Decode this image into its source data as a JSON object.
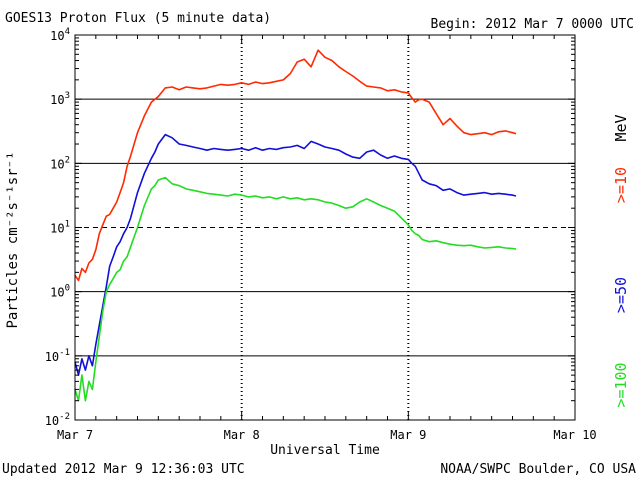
{
  "header": {
    "title": "GOES13 Proton Flux (5 minute data)",
    "begin": "Begin: 2012 Mar 7 0000 UTC"
  },
  "footer": {
    "updated": "Updated 2012 Mar  9 12:36:03 UTC",
    "credit": "NOAA/SWPC Boulder, CO USA"
  },
  "colors": {
    "p10": "#ff2a00",
    "p50": "#1010d8",
    "p100": "#22dd22",
    "grid": "#000000"
  },
  "chart_data": {
    "type": "line",
    "title": "GOES13 Proton Flux (5 minute data)",
    "xlabel": "Universal Time",
    "ylabel": "Particles cm⁻²s⁻¹sr⁻¹",
    "yscale": "log",
    "ylim": [
      0.01,
      10000
    ],
    "xlim": [
      0,
      72
    ],
    "x_unit": "hours since 2012 Mar 7 0000 UTC",
    "x_ticks": [
      {
        "x": 0,
        "label": "Mar 7"
      },
      {
        "x": 24,
        "label": "Mar 8"
      },
      {
        "x": 48,
        "label": "Mar 9"
      },
      {
        "x": 72,
        "label": "Mar 10"
      }
    ],
    "y_ticks": [
      {
        "y": 0.01,
        "base": "10",
        "exp": "-2"
      },
      {
        "y": 0.1,
        "base": "10",
        "exp": "-1"
      },
      {
        "y": 1,
        "base": "10",
        "exp": "0"
      },
      {
        "y": 10,
        "base": "10",
        "exp": "1"
      },
      {
        "y": 100,
        "base": "10",
        "exp": "2"
      },
      {
        "y": 1000,
        "base": "10",
        "exp": "3"
      },
      {
        "y": 10000,
        "base": "10",
        "exp": "4"
      }
    ],
    "threshold_line": {
      "y": 10,
      "style": "dashed"
    },
    "grid": true,
    "legend_position": "right",
    "series": [
      {
        "name": ">=10 MeV",
        "color": "#ff2a00",
        "x": [
          0,
          0.5,
          1,
          1.5,
          2,
          2.5,
          3,
          3.5,
          4,
          4.5,
          5,
          5.5,
          6,
          6.5,
          7,
          7.5,
          8,
          9,
          10,
          11,
          11.5,
          12,
          13,
          14,
          15,
          16,
          17,
          18,
          19,
          20,
          21,
          22,
          23,
          24,
          25,
          26,
          27,
          28,
          29,
          30,
          31,
          32,
          33,
          34,
          35,
          36,
          37,
          38,
          39,
          40,
          41,
          42,
          43,
          44,
          45,
          46,
          47,
          48,
          48.5,
          49,
          49.5,
          50,
          51,
          52,
          53,
          54,
          55,
          56,
          57,
          58,
          59,
          60,
          61,
          62,
          63,
          63.5
        ],
        "y": [
          1.8,
          1.5,
          2.3,
          2.0,
          2.8,
          3.2,
          4.5,
          8.0,
          11,
          15,
          16,
          20,
          25,
          35,
          50,
          90,
          130,
          300,
          550,
          900,
          1000,
          1100,
          1500,
          1550,
          1400,
          1550,
          1500,
          1450,
          1500,
          1600,
          1700,
          1650,
          1700,
          1800,
          1700,
          1850,
          1750,
          1800,
          1900,
          2000,
          2500,
          3800,
          4200,
          3200,
          5800,
          4500,
          4000,
          3200,
          2700,
          2300,
          1900,
          1600,
          1550,
          1500,
          1350,
          1400,
          1300,
          1250,
          1050,
          900,
          980,
          1000,
          900,
          600,
          400,
          500,
          380,
          300,
          280,
          290,
          300,
          280,
          310,
          320,
          300,
          290
        ]
      },
      {
        "name": ">=50 MeV",
        "color": "#1010d8",
        "x": [
          0,
          0.5,
          1,
          1.5,
          2,
          2.5,
          3,
          3.5,
          4,
          4.5,
          5,
          5.5,
          6,
          6.5,
          7,
          7.5,
          8,
          9,
          10,
          11,
          11.5,
          12,
          13,
          14,
          15,
          16,
          17,
          18,
          19,
          20,
          21,
          22,
          23,
          24,
          25,
          26,
          27,
          28,
          29,
          30,
          31,
          32,
          33,
          34,
          35,
          36,
          37,
          38,
          39,
          40,
          41,
          42,
          43,
          44,
          45,
          46,
          47,
          48,
          48.5,
          49,
          49.5,
          50,
          51,
          52,
          53,
          54,
          55,
          56,
          57,
          58,
          59,
          60,
          61,
          62,
          63,
          63.5
        ],
        "y": [
          0.08,
          0.05,
          0.09,
          0.06,
          0.1,
          0.07,
          0.15,
          0.3,
          0.6,
          1.2,
          2.5,
          3.5,
          5.0,
          6.0,
          8.0,
          10,
          14,
          35,
          70,
          120,
          150,
          200,
          280,
          250,
          200,
          190,
          180,
          170,
          160,
          170,
          165,
          160,
          165,
          170,
          160,
          175,
          160,
          170,
          165,
          175,
          180,
          190,
          170,
          220,
          200,
          180,
          170,
          160,
          140,
          125,
          120,
          150,
          160,
          135,
          120,
          130,
          120,
          115,
          100,
          90,
          70,
          55,
          48,
          45,
          38,
          40,
          35,
          32,
          33,
          34,
          35,
          33,
          34,
          33,
          32,
          31
        ]
      },
      {
        "name": ">=100 MeV",
        "color": "#22dd22",
        "x": [
          0,
          0.5,
          1,
          1.5,
          2,
          2.5,
          3,
          3.5,
          4,
          4.5,
          5,
          5.5,
          6,
          6.5,
          7,
          7.5,
          8,
          9,
          10,
          11,
          11.5,
          12,
          13,
          14,
          15,
          16,
          17,
          18,
          19,
          20,
          21,
          22,
          23,
          24,
          25,
          26,
          27,
          28,
          29,
          30,
          31,
          32,
          33,
          34,
          35,
          36,
          37,
          38,
          39,
          40,
          41,
          42,
          43,
          44,
          45,
          46,
          47,
          48,
          48.5,
          49,
          49.5,
          50,
          51,
          52,
          53,
          54,
          55,
          56,
          57,
          58,
          59,
          60,
          61,
          62,
          63,
          63.5
        ],
        "y": [
          0.03,
          0.02,
          0.05,
          0.02,
          0.04,
          0.03,
          0.08,
          0.2,
          0.5,
          1.0,
          1.3,
          1.6,
          2.0,
          2.2,
          3.0,
          3.5,
          5.0,
          10,
          22,
          40,
          45,
          55,
          60,
          48,
          45,
          40,
          38,
          36,
          34,
          33,
          32,
          31,
          33,
          32,
          30,
          31,
          29,
          30,
          28,
          30,
          28,
          29,
          27,
          28,
          27,
          25,
          24,
          22,
          20,
          21,
          25,
          28,
          25,
          22,
          20,
          18,
          14,
          11,
          9,
          8,
          7.5,
          6.5,
          6.0,
          6.2,
          5.8,
          5.5,
          5.3,
          5.2,
          5.3,
          5.0,
          4.8,
          4.9,
          5.0,
          4.8,
          4.7,
          4.6
        ]
      }
    ],
    "legend": [
      {
        "label": ">=10",
        "color": "#ff2a00"
      },
      {
        "label": ">=50",
        "color": "#1010d8"
      },
      {
        "label": ">=100",
        "color": "#22dd22"
      },
      {
        "label": "MeV",
        "color": "#000000"
      }
    ]
  }
}
